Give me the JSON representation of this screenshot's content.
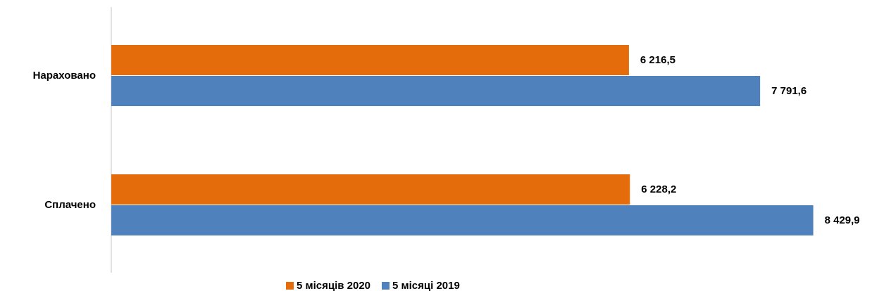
{
  "chart_data": {
    "type": "hbar",
    "categories": [
      "Нараховано",
      "Сплачено"
    ],
    "series": [
      {
        "name": "5 місяців 2020",
        "color": "#e46c0a",
        "values": [
          6216.5,
          6228.2
        ],
        "value_labels": [
          "6 216,5",
          "6 228,2"
        ]
      },
      {
        "name": "5 місяці 2019",
        "color": "#4f81bd",
        "values": [
          7791.6,
          8429.9
        ],
        "value_labels": [
          "7 791,6",
          "8 429,9"
        ]
      }
    ],
    "xlim": [
      0,
      9000
    ],
    "legend": "bottom"
  }
}
